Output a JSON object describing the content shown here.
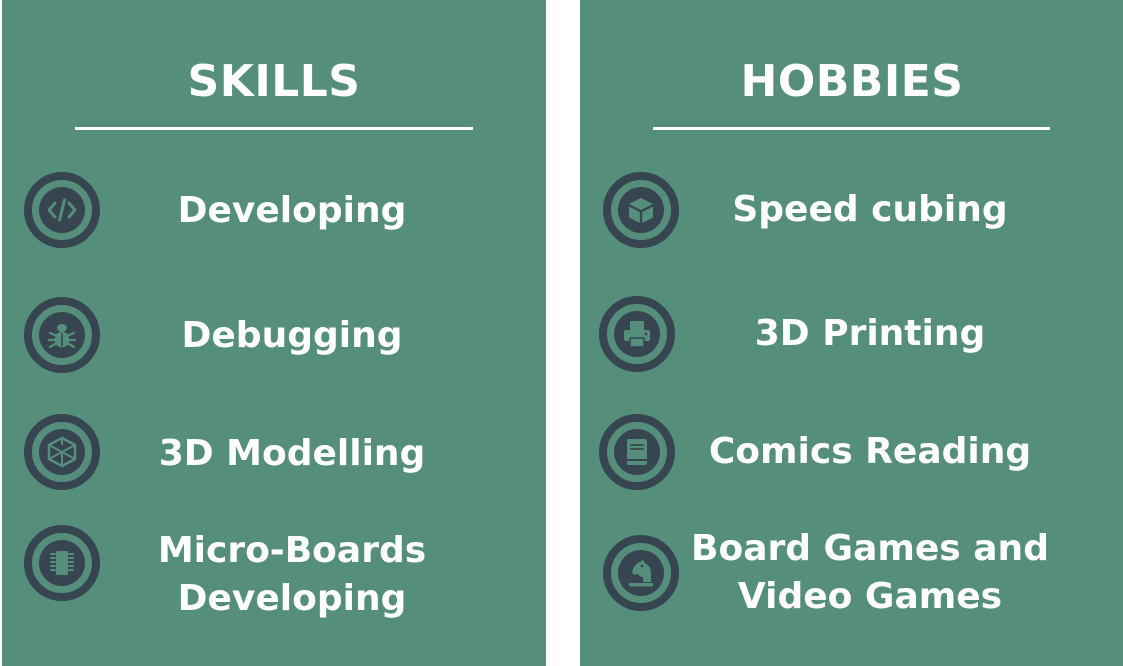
{
  "skills": {
    "title": "SKILLS",
    "items": [
      {
        "label": "Developing",
        "icon": "code-icon"
      },
      {
        "label": "Debugging",
        "icon": "bug-icon"
      },
      {
        "label": "3D Modelling",
        "icon": "cube-outline-icon"
      },
      {
        "label_line1": "Micro-Boards",
        "label_line2": "Developing",
        "icon": "chip-icon"
      }
    ]
  },
  "hobbies": {
    "title": "HOBBIES",
    "items": [
      {
        "label": "Speed cubing",
        "icon": "cube-icon"
      },
      {
        "label": "3D Printing",
        "icon": "printer-icon"
      },
      {
        "label": "Comics Reading",
        "icon": "book-icon"
      },
      {
        "label_line1": "Board Games and",
        "label_line2": "Video Games",
        "icon": "chess-knight-icon"
      }
    ]
  },
  "colors": {
    "panel_background": "#558f7b",
    "icon_dark": "#36454f",
    "text": "#ffffff"
  }
}
